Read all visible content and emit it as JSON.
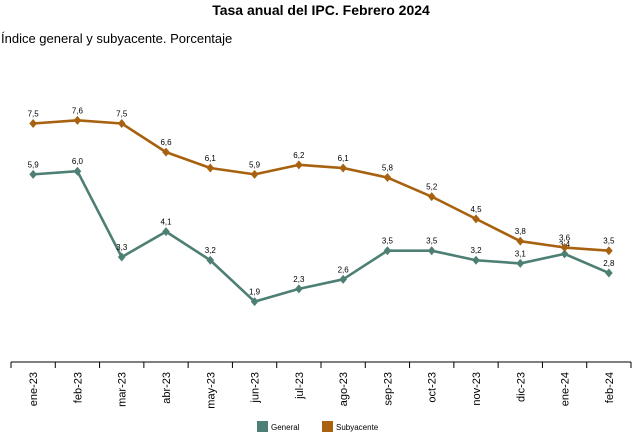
{
  "chart_data": {
    "type": "line",
    "title": "Tasa anual del IPC. Febrero 2024",
    "subtitle": "Índice general y subyacente. Porcentaje",
    "categories": [
      "ene-23",
      "feb-23",
      "mar-23",
      "abr-23",
      "may-23",
      "jun-23",
      "jul-23",
      "ago-23",
      "sep-23",
      "oct-23",
      "nov-23",
      "dic-23",
      "ene-24",
      "feb-24"
    ],
    "series": [
      {
        "name": "General",
        "color": "#4d7f74",
        "marker": "diamond",
        "values": [
          5.9,
          6.0,
          3.3,
          4.1,
          3.2,
          1.9,
          2.3,
          2.6,
          3.5,
          3.5,
          3.2,
          3.1,
          3.4,
          2.8
        ],
        "labels": [
          "5,9",
          "6,0",
          "3,3",
          "4,1",
          "3,2",
          "1,9",
          "2,3",
          "2,6",
          "3,5",
          "3,5",
          "3,2",
          "3,1",
          "3,4",
          "2,8"
        ]
      },
      {
        "name": "Subyacente",
        "color": "#a8620f",
        "marker": "diamond",
        "values": [
          7.5,
          7.6,
          7.5,
          6.6,
          6.1,
          5.9,
          6.2,
          6.1,
          5.8,
          5.2,
          4.5,
          3.8,
          3.6,
          3.5
        ],
        "labels": [
          "7,5",
          "7,6",
          "7,5",
          "6,6",
          "6,1",
          "5,9",
          "6,2",
          "6,1",
          "5,8",
          "5,2",
          "4,5",
          "3,8",
          "3,6",
          "3,5"
        ]
      }
    ],
    "xlabel": "",
    "ylabel": "",
    "ylim": [
      0,
      9
    ],
    "grid": false,
    "legend": "bottom-center"
  }
}
